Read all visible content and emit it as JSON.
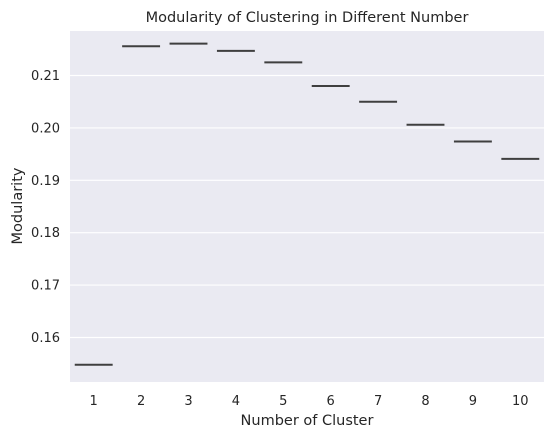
{
  "chart_data": {
    "type": "box",
    "title": "Modularity of Clustering in Different Number",
    "xlabel": "Number of Cluster",
    "ylabel": "Modularity",
    "categories": [
      "1",
      "2",
      "3",
      "4",
      "5",
      "6",
      "7",
      "8",
      "9",
      "10"
    ],
    "values": [
      0.1548,
      0.2156,
      0.2161,
      0.2147,
      0.2125,
      0.208,
      0.205,
      0.2006,
      0.1974,
      0.1941
    ],
    "ylim": [
      0.1515,
      0.2185
    ],
    "yticks": [
      0.16,
      0.17,
      0.18,
      0.19,
      0.2,
      0.21
    ],
    "ytick_labels": [
      "0.16",
      "0.17",
      "0.18",
      "0.19",
      "0.20",
      "0.21"
    ],
    "grid": true,
    "colors": {
      "background": "#eaeaf2",
      "grid": "#ffffff",
      "mark": "#3f3f3f"
    }
  }
}
